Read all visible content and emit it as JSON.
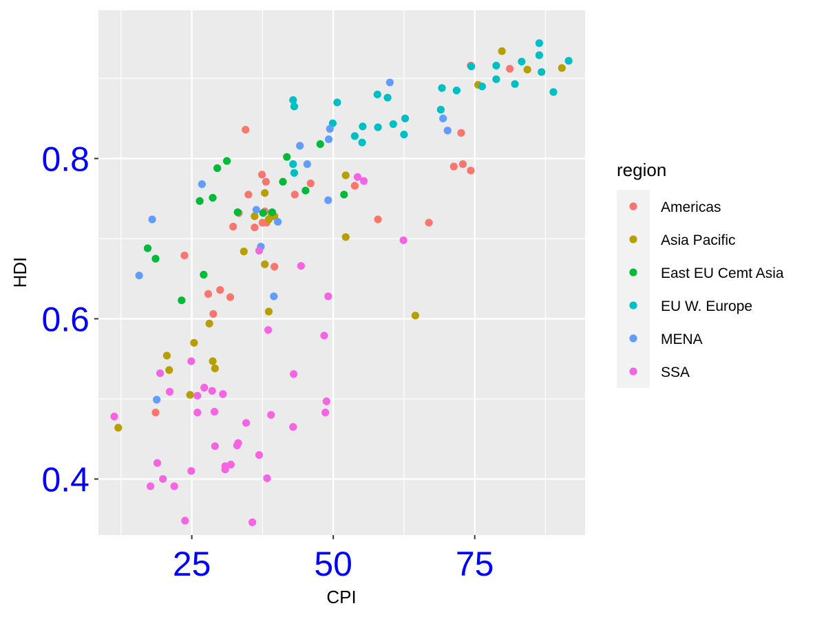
{
  "chart_data": {
    "type": "scatter",
    "xlabel": "CPI",
    "ylabel": "HDI",
    "xlim": [
      8.5,
      94.5
    ],
    "ylim": [
      0.33,
      0.985
    ],
    "x_ticks": [
      25,
      50,
      75
    ],
    "x_tick_labels": [
      "25",
      "50",
      "75"
    ],
    "y_ticks": [
      0.4,
      0.6,
      0.8
    ],
    "y_tick_labels": [
      "0.4",
      "0.6",
      "0.8"
    ],
    "tick_label_color": "#0000ff",
    "grid": true,
    "panel_background": "#ebebeb",
    "legend": {
      "title": "region",
      "placement": "right"
    },
    "series": [
      {
        "name": "Americas",
        "color": "#F8766D",
        "points": [
          [
            34.5,
            0.836
          ],
          [
            74.3,
            0.916
          ],
          [
            81.2,
            0.912
          ],
          [
            72.6,
            0.832
          ],
          [
            71.3,
            0.79
          ],
          [
            72.9,
            0.793
          ],
          [
            74.3,
            0.785
          ],
          [
            66.9,
            0.72
          ],
          [
            57.9,
            0.724
          ],
          [
            53.8,
            0.766
          ],
          [
            46.0,
            0.769
          ],
          [
            43.2,
            0.755
          ],
          [
            37.4,
            0.78
          ],
          [
            38.1,
            0.771
          ],
          [
            35.0,
            0.755
          ],
          [
            37.9,
            0.734
          ],
          [
            33.3,
            0.732
          ],
          [
            32.3,
            0.715
          ],
          [
            36.1,
            0.714
          ],
          [
            37.5,
            0.72
          ],
          [
            38.2,
            0.72
          ],
          [
            23.7,
            0.679
          ],
          [
            39.6,
            0.665
          ],
          [
            27.9,
            0.631
          ],
          [
            30.0,
            0.636
          ],
          [
            31.8,
            0.627
          ],
          [
            28.8,
            0.606
          ],
          [
            18.6,
            0.483
          ]
        ]
      },
      {
        "name": "Asia Pacific",
        "color": "#B79F00",
        "points": [
          [
            79.8,
            0.934
          ],
          [
            84.3,
            0.911
          ],
          [
            90.4,
            0.913
          ],
          [
            75.6,
            0.892
          ],
          [
            52.2,
            0.779
          ],
          [
            37.9,
            0.757
          ],
          [
            36.1,
            0.728
          ],
          [
            39.1,
            0.729
          ],
          [
            38.6,
            0.724
          ],
          [
            39.6,
            0.728
          ],
          [
            34.2,
            0.684
          ],
          [
            52.2,
            0.702
          ],
          [
            37.9,
            0.668
          ],
          [
            64.5,
            0.604
          ],
          [
            38.6,
            0.609
          ],
          [
            28.1,
            0.594
          ],
          [
            25.4,
            0.57
          ],
          [
            20.6,
            0.554
          ],
          [
            28.7,
            0.547
          ],
          [
            29.1,
            0.538
          ],
          [
            21.0,
            0.536
          ],
          [
            24.7,
            0.505
          ],
          [
            12.0,
            0.464
          ]
        ]
      },
      {
        "name": "East EU Cemt Asia",
        "color": "#00BA38",
        "points": [
          [
            31.2,
            0.797
          ],
          [
            29.5,
            0.788
          ],
          [
            41.8,
            0.802
          ],
          [
            47.7,
            0.818
          ],
          [
            26.4,
            0.747
          ],
          [
            28.7,
            0.751
          ],
          [
            41.1,
            0.771
          ],
          [
            45.1,
            0.76
          ],
          [
            51.9,
            0.755
          ],
          [
            33.1,
            0.733
          ],
          [
            37.6,
            0.732
          ],
          [
            39.2,
            0.733
          ],
          [
            17.2,
            0.688
          ],
          [
            18.6,
            0.675
          ],
          [
            27.1,
            0.655
          ],
          [
            23.2,
            0.623
          ]
        ]
      },
      {
        "name": "EU W. Europe",
        "color": "#00BFC4",
        "points": [
          [
            86.4,
            0.944
          ],
          [
            91.6,
            0.922
          ],
          [
            86.4,
            0.929
          ],
          [
            86.8,
            0.908
          ],
          [
            83.3,
            0.921
          ],
          [
            78.8,
            0.916
          ],
          [
            74.4,
            0.915
          ],
          [
            88.9,
            0.883
          ],
          [
            76.3,
            0.89
          ],
          [
            78.8,
            0.899
          ],
          [
            82.1,
            0.893
          ],
          [
            69.2,
            0.888
          ],
          [
            71.8,
            0.885
          ],
          [
            69.0,
            0.861
          ],
          [
            57.8,
            0.88
          ],
          [
            59.6,
            0.876
          ],
          [
            50.7,
            0.87
          ],
          [
            42.9,
            0.873
          ],
          [
            43.1,
            0.865
          ],
          [
            49.9,
            0.844
          ],
          [
            55.2,
            0.84
          ],
          [
            57.9,
            0.839
          ],
          [
            60.6,
            0.843
          ],
          [
            62.7,
            0.85
          ],
          [
            53.8,
            0.828
          ],
          [
            55.1,
            0.82
          ],
          [
            62.5,
            0.83
          ],
          [
            42.9,
            0.793
          ],
          [
            43.1,
            0.782
          ]
        ]
      },
      {
        "name": "MENA",
        "color": "#619CFF",
        "points": [
          [
            60.0,
            0.895
          ],
          [
            69.4,
            0.85
          ],
          [
            70.2,
            0.835
          ],
          [
            49.4,
            0.837
          ],
          [
            49.2,
            0.824
          ],
          [
            44.1,
            0.816
          ],
          [
            45.4,
            0.793
          ],
          [
            26.8,
            0.768
          ],
          [
            18.0,
            0.724
          ],
          [
            36.4,
            0.736
          ],
          [
            40.2,
            0.721
          ],
          [
            49.1,
            0.748
          ],
          [
            37.2,
            0.69
          ],
          [
            15.7,
            0.654
          ],
          [
            39.5,
            0.628
          ],
          [
            18.8,
            0.499
          ]
        ]
      },
      {
        "name": "SSA",
        "color": "#F564E3",
        "points": [
          [
            54.3,
            0.777
          ],
          [
            55.4,
            0.772
          ],
          [
            62.4,
            0.698
          ],
          [
            36.9,
            0.685
          ],
          [
            44.3,
            0.666
          ],
          [
            49.1,
            0.628
          ],
          [
            38.5,
            0.586
          ],
          [
            48.4,
            0.579
          ],
          [
            24.9,
            0.547
          ],
          [
            19.4,
            0.532
          ],
          [
            43.0,
            0.531
          ],
          [
            27.2,
            0.514
          ],
          [
            28.6,
            0.51
          ],
          [
            30.5,
            0.506
          ],
          [
            21.1,
            0.509
          ],
          [
            26.0,
            0.504
          ],
          [
            48.8,
            0.497
          ],
          [
            26.0,
            0.483
          ],
          [
            29.0,
            0.484
          ],
          [
            48.6,
            0.483
          ],
          [
            39.0,
            0.48
          ],
          [
            11.3,
            0.478
          ],
          [
            34.6,
            0.47
          ],
          [
            42.9,
            0.465
          ],
          [
            29.1,
            0.441
          ],
          [
            33.0,
            0.442
          ],
          [
            33.2,
            0.445
          ],
          [
            36.9,
            0.43
          ],
          [
            18.9,
            0.42
          ],
          [
            31.9,
            0.418
          ],
          [
            30.9,
            0.416
          ],
          [
            30.9,
            0.412
          ],
          [
            24.9,
            0.41
          ],
          [
            19.9,
            0.4
          ],
          [
            38.3,
            0.401
          ],
          [
            17.7,
            0.391
          ],
          [
            21.9,
            0.391
          ],
          [
            23.8,
            0.348
          ],
          [
            35.7,
            0.346
          ]
        ]
      }
    ]
  }
}
